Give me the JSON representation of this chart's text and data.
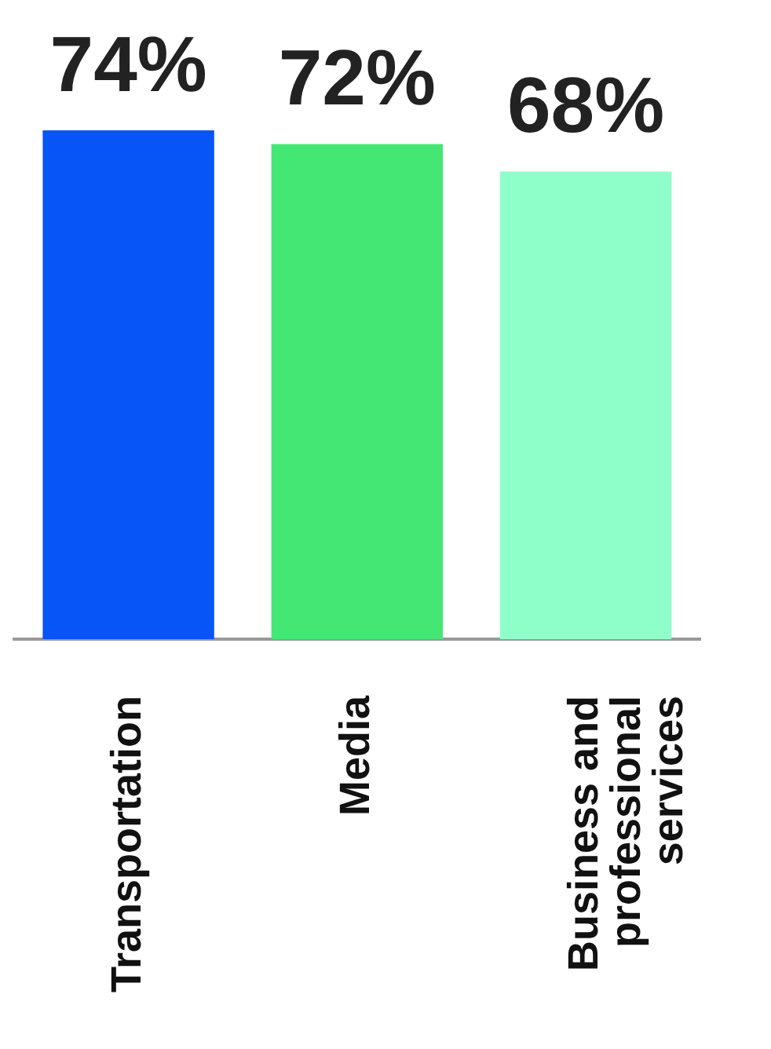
{
  "chart_data": {
    "type": "bar",
    "categories": [
      "Transportation",
      "Media",
      "Business and professional services"
    ],
    "values": [
      74,
      72,
      68
    ],
    "colors": [
      "#0755f6",
      "#45e774",
      "#8effc8"
    ],
    "value_labels": [
      "74%",
      "72%",
      "68%"
    ],
    "grid": false,
    "legend": false,
    "tick_labels": "x"
  }
}
